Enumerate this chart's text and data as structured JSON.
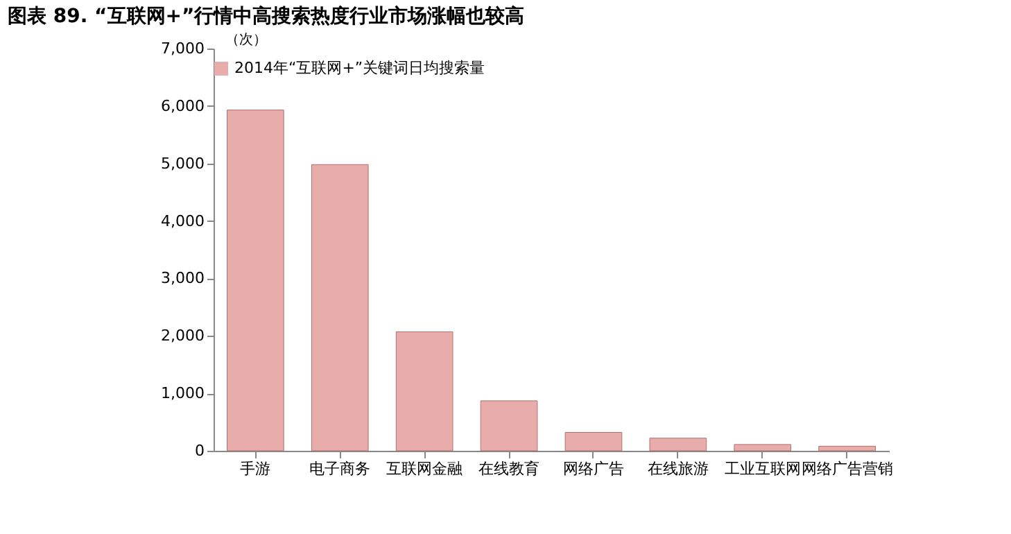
{
  "chart_data": {
    "type": "bar",
    "title": "图表 89. “互联网+”行情中高搜索热度行业市场涨幅也较高",
    "ylabel": "（次）",
    "categories": [
      "手游",
      "电子商务",
      "互联网金融",
      "在线教育",
      "网络广告",
      "在线旅游",
      "工业互联网",
      "网络广告营销"
    ],
    "series": [
      {
        "name": "2014年“互联网+”关键词日均搜索量",
        "color": "#e8adab",
        "values": [
          5930,
          4980,
          2070,
          870,
          320,
          220,
          110,
          80
        ]
      }
    ],
    "ylim": [
      0,
      7000
    ],
    "yticks": [
      0,
      {
        "value": 1000,
        "label": "1,000"
      },
      {
        "value": 2000,
        "label": "2,000"
      },
      {
        "value": 3000,
        "label": "3,000"
      },
      {
        "value": 4000,
        "label": "4,000"
      },
      {
        "value": 5000,
        "label": "5,000"
      },
      {
        "value": 6000,
        "label": "6,000"
      },
      {
        "value": 7000,
        "label": "7,000"
      }
    ],
    "grid": false,
    "legend": "top"
  }
}
